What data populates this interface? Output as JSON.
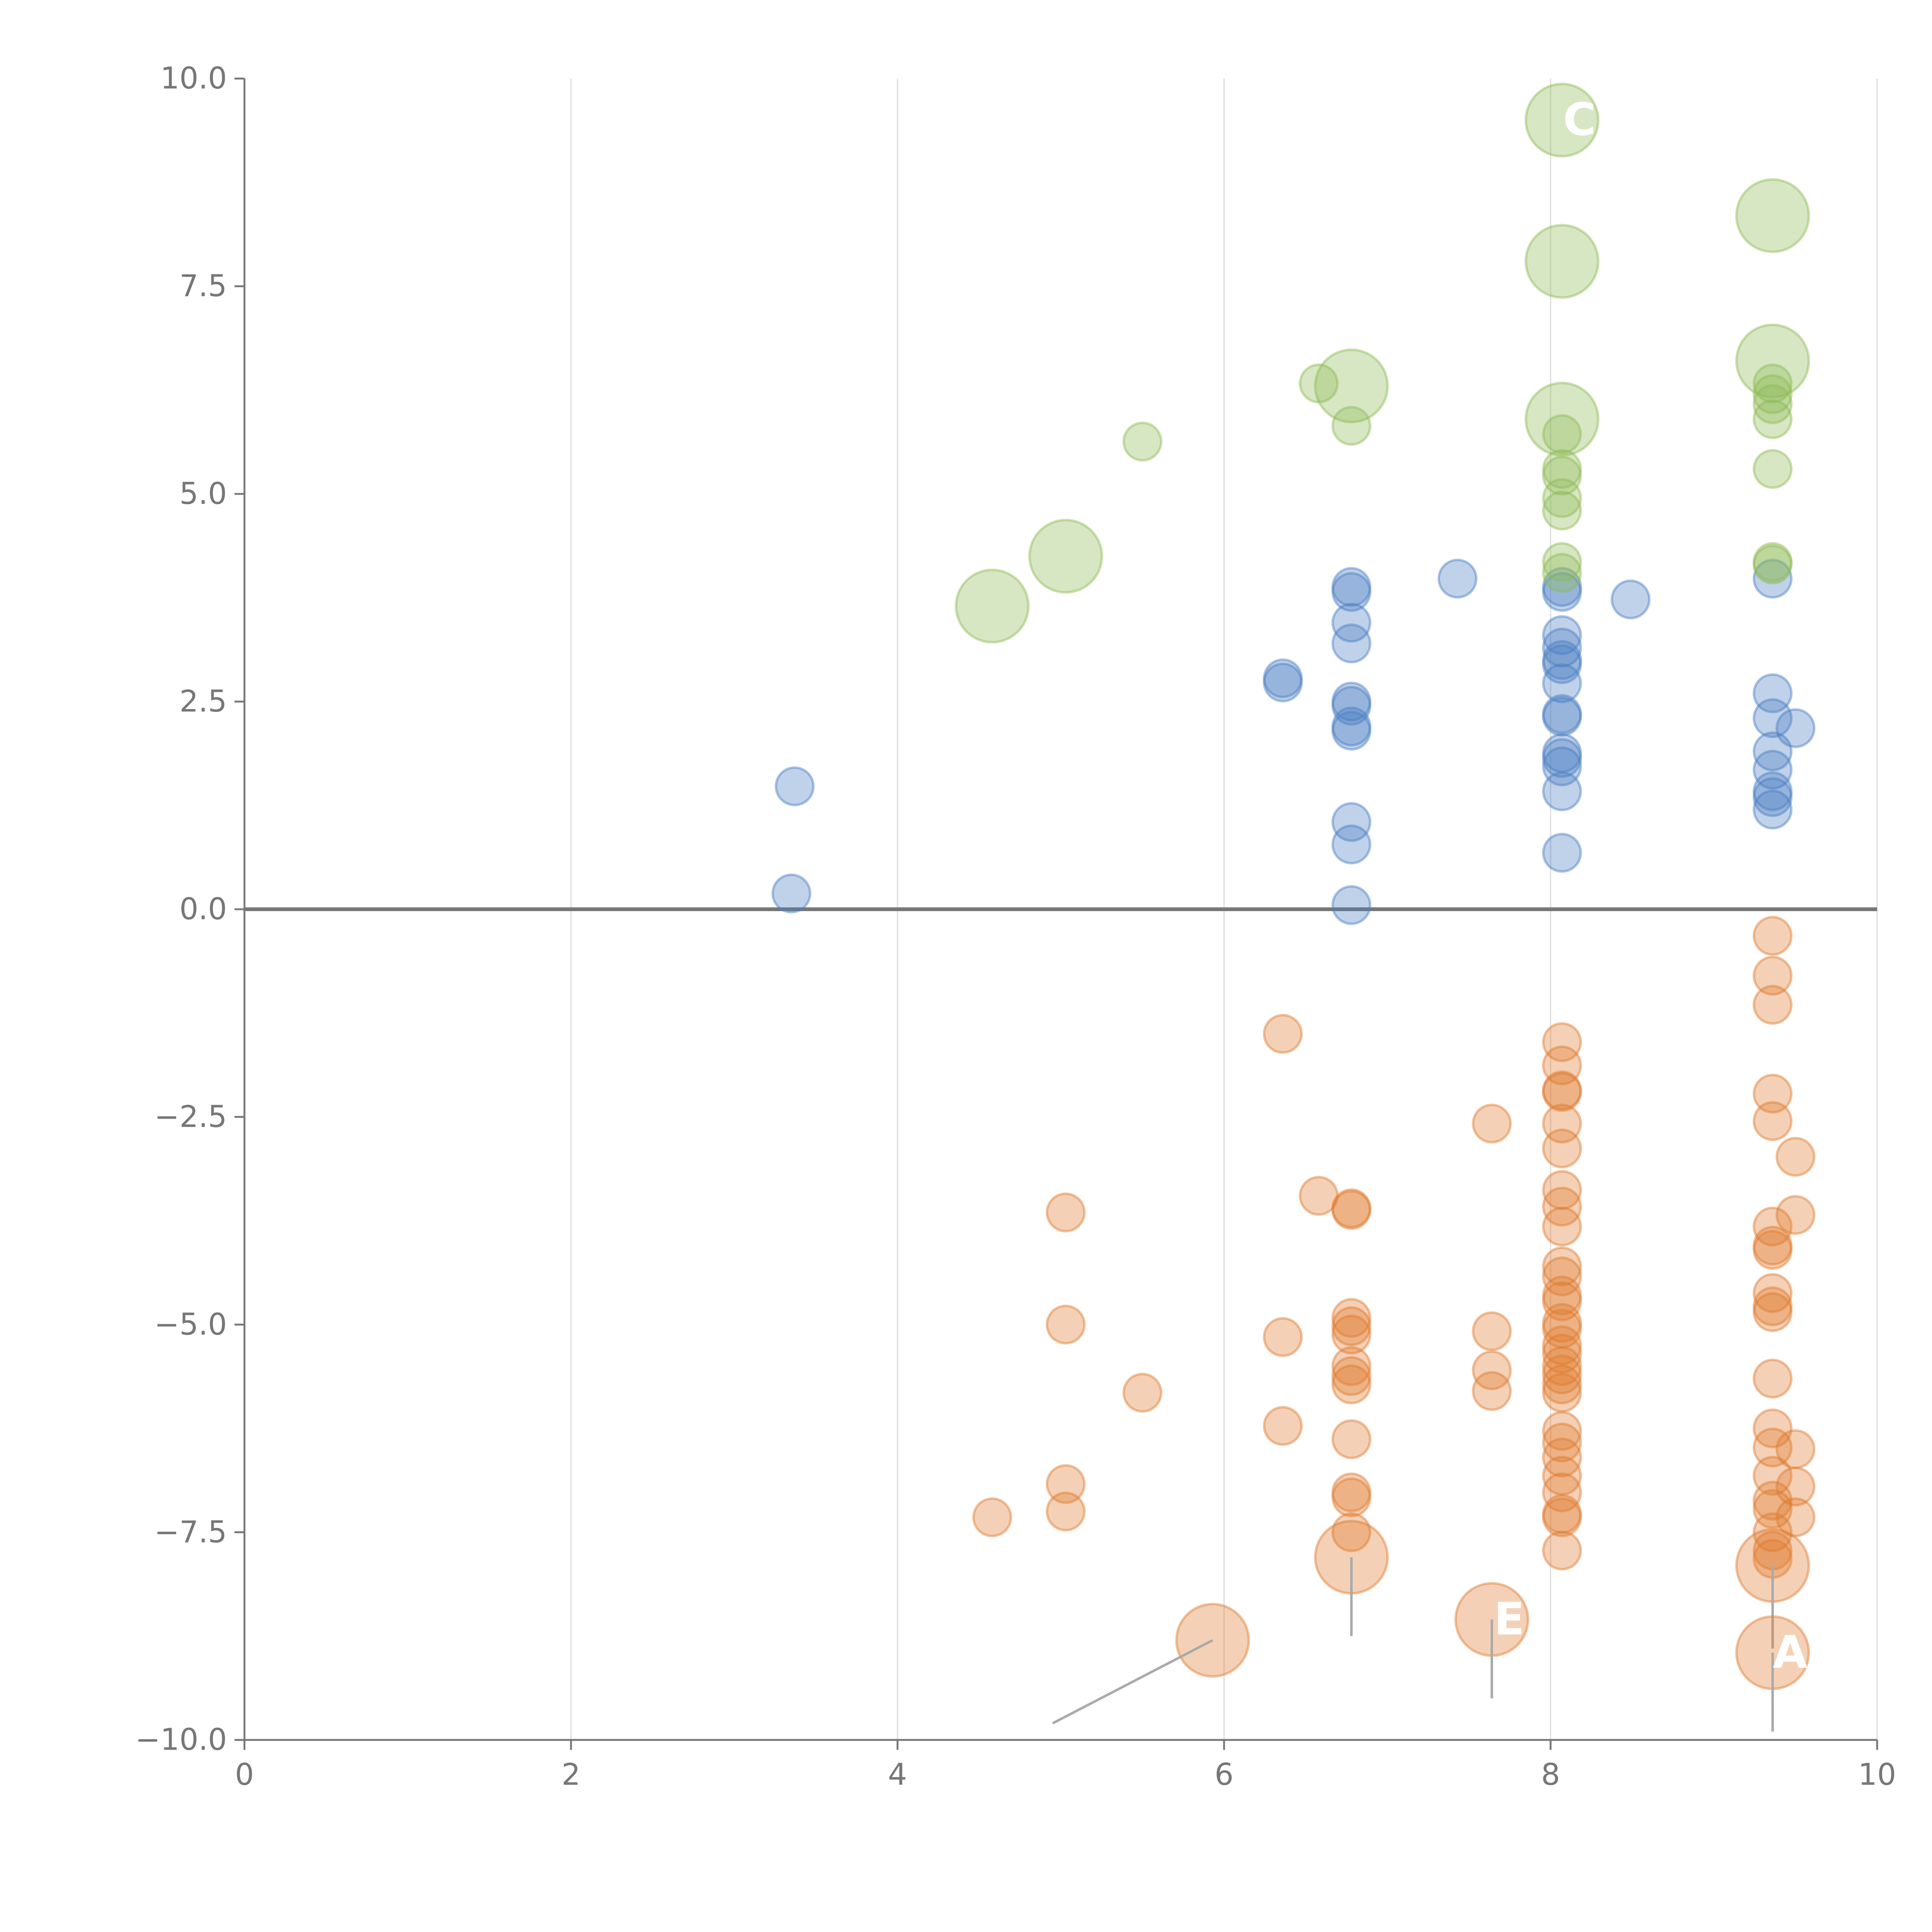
{
  "chart_data": {
    "type": "scatter",
    "title": "",
    "xlabel": "",
    "ylabel": "",
    "xlim": [
      0,
      10
    ],
    "ylim": [
      -10,
      10
    ],
    "x_ticks": [
      0,
      2,
      4,
      6,
      8,
      10
    ],
    "x_tick_labels": [
      "0",
      "2",
      "4",
      "6",
      "8",
      "10"
    ],
    "y_ticks": [
      10,
      7.5,
      5,
      2.5,
      0,
      -2.5,
      -5,
      -7.5,
      -10
    ],
    "y_tick_labels": [
      "10.0",
      "7.5",
      "5.0",
      "2.5",
      "0.0",
      "−2.5",
      "−5.0",
      "−7.5",
      "−10.0"
    ],
    "grid": "vertical",
    "zero_line": true,
    "colors": {
      "blue": "#4a7ec4",
      "orange": "#e07b2e",
      "green": "#8dba55",
      "axis": "#777777",
      "grid": "#dddddd"
    },
    "series": [
      {
        "name": "blue",
        "color": "#4a7ec4",
        "points": [
          [
            3.37,
            1.48
          ],
          [
            3.35,
            0.19
          ],
          [
            6.36,
            2.78
          ],
          [
            6.36,
            2.73
          ],
          [
            6.78,
            3.88
          ],
          [
            6.78,
            3.82
          ],
          [
            6.78,
            3.45
          ],
          [
            6.78,
            3.2
          ],
          [
            6.78,
            2.5
          ],
          [
            6.78,
            2.45
          ],
          [
            6.78,
            2.2
          ],
          [
            6.78,
            2.15
          ],
          [
            6.78,
            1.05
          ],
          [
            6.78,
            0.78
          ],
          [
            6.78,
            0.05
          ],
          [
            7.43,
            3.98
          ],
          [
            8.07,
            3.88
          ],
          [
            8.07,
            3.82
          ],
          [
            8.07,
            3.3
          ],
          [
            8.07,
            3.15
          ],
          [
            8.07,
            3.0
          ],
          [
            8.07,
            2.95
          ],
          [
            8.07,
            2.72
          ],
          [
            8.07,
            2.35
          ],
          [
            8.07,
            2.32
          ],
          [
            8.07,
            1.88
          ],
          [
            8.07,
            1.82
          ],
          [
            8.07,
            1.72
          ],
          [
            8.07,
            1.42
          ],
          [
            8.07,
            0.68
          ],
          [
            8.49,
            3.73
          ],
          [
            9.36,
            3.98
          ],
          [
            9.36,
            2.6
          ],
          [
            9.36,
            2.3
          ],
          [
            9.36,
            1.9
          ],
          [
            9.36,
            1.68
          ],
          [
            9.36,
            1.42
          ],
          [
            9.36,
            1.35
          ],
          [
            9.36,
            1.2
          ],
          [
            9.5,
            2.18
          ]
        ]
      },
      {
        "name": "green",
        "color": "#8dba55",
        "points": [
          [
            5.5,
            5.63
          ],
          [
            6.58,
            6.33
          ],
          [
            6.78,
            5.82
          ],
          [
            8.07,
            5.72
          ],
          [
            8.07,
            5.3
          ],
          [
            8.07,
            5.22
          ],
          [
            8.07,
            4.95
          ],
          [
            8.07,
            4.8
          ],
          [
            8.07,
            4.18
          ],
          [
            8.07,
            4.05
          ],
          [
            9.36,
            6.33
          ],
          [
            9.36,
            6.2
          ],
          [
            9.36,
            6.08
          ],
          [
            9.36,
            5.9
          ],
          [
            9.36,
            5.3
          ],
          [
            9.36,
            4.18
          ],
          [
            9.36,
            4.15
          ]
        ]
      },
      {
        "name": "orange",
        "color": "#e07b2e",
        "points": [
          [
            4.58,
            -7.32
          ],
          [
            5.03,
            -3.65
          ],
          [
            5.03,
            -5.0
          ],
          [
            5.03,
            -6.92
          ],
          [
            5.03,
            -7.25
          ],
          [
            5.5,
            -5.82
          ],
          [
            6.36,
            -1.5
          ],
          [
            6.36,
            -5.15
          ],
          [
            6.36,
            -6.22
          ],
          [
            6.58,
            -3.45
          ],
          [
            6.78,
            -3.6
          ],
          [
            6.78,
            -3.62
          ],
          [
            6.78,
            -4.92
          ],
          [
            6.78,
            -5.02
          ],
          [
            6.78,
            -5.12
          ],
          [
            6.78,
            -5.5
          ],
          [
            6.78,
            -5.62
          ],
          [
            6.78,
            -5.72
          ],
          [
            6.78,
            -6.38
          ],
          [
            6.78,
            -7.02
          ],
          [
            6.78,
            -7.08
          ],
          [
            6.78,
            -7.5
          ],
          [
            7.64,
            -2.58
          ],
          [
            7.64,
            -5.08
          ],
          [
            7.64,
            -5.55
          ],
          [
            7.64,
            -5.8
          ],
          [
            8.07,
            -1.6
          ],
          [
            8.07,
            -1.88
          ],
          [
            8.07,
            -2.18
          ],
          [
            8.07,
            -2.2
          ],
          [
            8.07,
            -2.58
          ],
          [
            8.07,
            -2.88
          ],
          [
            8.07,
            -3.38
          ],
          [
            8.07,
            -3.58
          ],
          [
            8.07,
            -3.82
          ],
          [
            8.07,
            -4.3
          ],
          [
            8.07,
            -4.42
          ],
          [
            8.07,
            -4.65
          ],
          [
            8.07,
            -4.72
          ],
          [
            8.07,
            -4.98
          ],
          [
            8.07,
            -5.05
          ],
          [
            8.07,
            -5.25
          ],
          [
            8.07,
            -5.35
          ],
          [
            8.07,
            -5.5
          ],
          [
            8.07,
            -5.6
          ],
          [
            8.07,
            -5.72
          ],
          [
            8.07,
            -5.82
          ],
          [
            8.07,
            -6.28
          ],
          [
            8.07,
            -6.42
          ],
          [
            8.07,
            -6.6
          ],
          [
            8.07,
            -6.82
          ],
          [
            8.07,
            -7.02
          ],
          [
            8.07,
            -7.28
          ],
          [
            8.07,
            -7.32
          ],
          [
            8.07,
            -7.72
          ],
          [
            9.36,
            -0.32
          ],
          [
            9.36,
            -0.8
          ],
          [
            9.36,
            -1.15
          ],
          [
            9.36,
            -2.22
          ],
          [
            9.36,
            -2.55
          ],
          [
            9.36,
            -3.82
          ],
          [
            9.36,
            -4.05
          ],
          [
            9.36,
            -4.1
          ],
          [
            9.36,
            -4.62
          ],
          [
            9.36,
            -4.78
          ],
          [
            9.36,
            -4.85
          ],
          [
            9.36,
            -5.65
          ],
          [
            9.36,
            -6.25
          ],
          [
            9.36,
            -6.48
          ],
          [
            9.36,
            -6.82
          ],
          [
            9.36,
            -7.12
          ],
          [
            9.36,
            -7.22
          ],
          [
            9.36,
            -7.5
          ],
          [
            9.36,
            -7.72
          ],
          [
            9.36,
            -7.82
          ],
          [
            9.5,
            -2.98
          ],
          [
            9.5,
            -3.68
          ],
          [
            9.5,
            -6.5
          ],
          [
            9.5,
            -6.95
          ],
          [
            9.5,
            -7.32
          ]
        ]
      }
    ],
    "highlights": [
      {
        "series": "green",
        "x": 4.58,
        "y": 3.65
      },
      {
        "series": "green",
        "x": 5.03,
        "y": 4.25
      },
      {
        "series": "green",
        "x": 6.78,
        "y": 6.3
      },
      {
        "series": "green",
        "x": 8.07,
        "y": 9.5,
        "label": "C"
      },
      {
        "series": "green",
        "x": 8.07,
        "y": 7.8
      },
      {
        "series": "green",
        "x": 8.07,
        "y": 5.9
      },
      {
        "series": "green",
        "x": 9.36,
        "y": 8.35
      },
      {
        "series": "green",
        "x": 9.36,
        "y": 6.6
      },
      {
        "series": "orange",
        "x": 5.93,
        "y": -8.8,
        "leader_to": [
          4.95,
          -9.8
        ]
      },
      {
        "series": "orange",
        "x": 6.78,
        "y": -7.8,
        "leader_to": [
          6.78,
          -8.75
        ]
      },
      {
        "series": "orange",
        "x": 7.64,
        "y": -8.55,
        "label": "E",
        "leader_to": [
          7.64,
          -9.5
        ]
      },
      {
        "series": "orange",
        "x": 9.36,
        "y": -7.9,
        "leader_to": [
          9.36,
          -8.9
        ]
      },
      {
        "series": "orange",
        "x": 9.36,
        "y": -8.95,
        "label": "A",
        "leader_to": [
          9.36,
          -9.9
        ]
      }
    ]
  }
}
